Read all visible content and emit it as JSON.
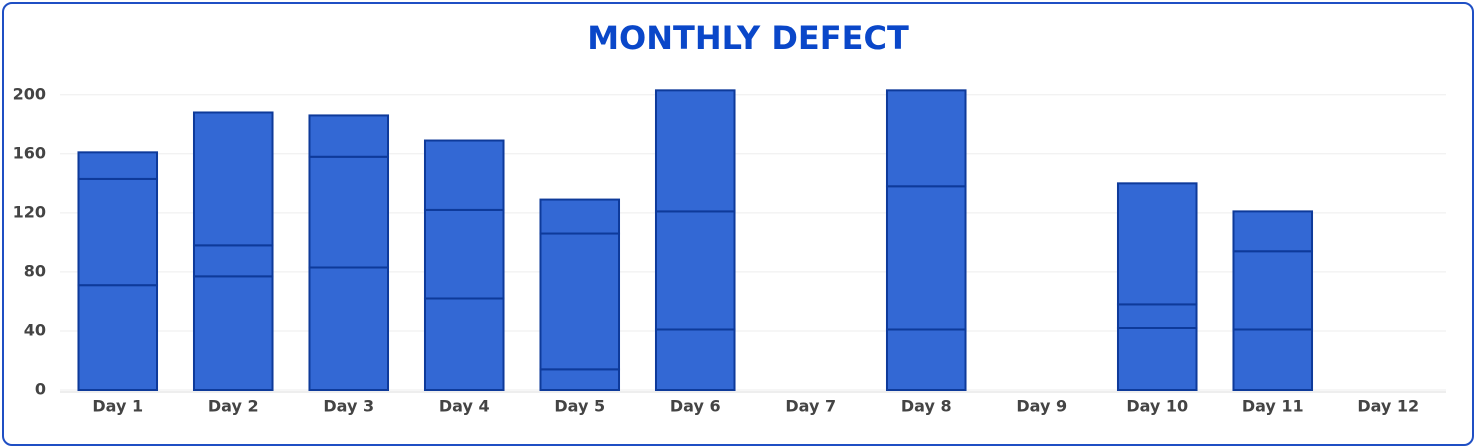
{
  "chart_data": {
    "type": "stacked_bar",
    "title": "MONTHLY DEFECT",
    "categories": [
      "Day 1",
      "Day 2",
      "Day 3",
      "Day 4",
      "Day 5",
      "Day 6",
      "Day 7",
      "Day 8",
      "Day 9",
      "Day 10",
      "Day 11",
      "Day 12"
    ],
    "series": [
      {
        "color": "#3368d4",
        "values": [
          71,
          77,
          83,
          62,
          14,
          41,
          null,
          41,
          null,
          42,
          41,
          null
        ]
      },
      {
        "color": "#3368d4",
        "values": [
          72,
          21,
          75,
          60,
          92,
          80,
          null,
          97,
          null,
          16,
          53,
          null
        ]
      },
      {
        "color": "#3368d4",
        "values": [
          18,
          90,
          28,
          47,
          23,
          82,
          null,
          65,
          null,
          82,
          27,
          null
        ]
      }
    ],
    "ylim": [
      0,
      210
    ],
    "yticks": [
      0,
      40,
      80,
      120,
      160,
      200
    ],
    "grid": true
  }
}
